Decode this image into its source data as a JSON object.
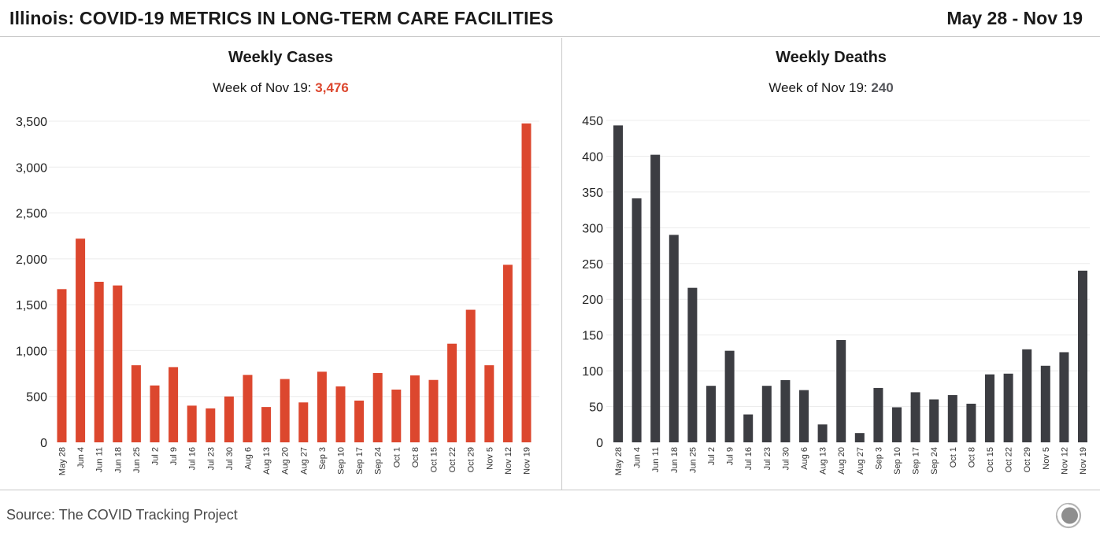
{
  "header": {
    "title": "Illinois: COVID-19 METRICS IN LONG-TERM CARE FACILITIES",
    "date_range": "May 28 - Nov 19"
  },
  "footer": {
    "source": "Source: The COVID Tracking Project",
    "logo_icon": "covid-tracking-project-logo-icon"
  },
  "colors": {
    "cases": "#dc472e",
    "deaths": "#3c3d42",
    "grid": "#ececec",
    "text": "#1a1a1a"
  },
  "chart_data": [
    {
      "type": "bar",
      "title": "Weekly Cases",
      "subtitle_prefix": "Week of Nov 19: ",
      "subtitle_value": "3,476",
      "categories": [
        "May 28",
        "Jun 4",
        "Jun 11",
        "Jun 18",
        "Jun 25",
        "Jul 2",
        "Jul 9",
        "Jul 16",
        "Jul 23",
        "Jul 30",
        "Aug 6",
        "Aug 13",
        "Aug 20",
        "Aug 27",
        "Sep 3",
        "Sep 10",
        "Sep 17",
        "Sep 24",
        "Oct 1",
        "Oct 8",
        "Oct 15",
        "Oct 22",
        "Oct 29",
        "Nov 5",
        "Nov 12",
        "Nov 19"
      ],
      "values": [
        1670,
        2220,
        1750,
        1710,
        840,
        620,
        820,
        400,
        370,
        500,
        735,
        385,
        690,
        435,
        770,
        610,
        455,
        755,
        575,
        730,
        680,
        1075,
        1445,
        840,
        1935,
        3476
      ],
      "yticks": [
        0,
        500,
        1000,
        1500,
        2000,
        2500,
        3000,
        3500
      ],
      "ytick_labels": [
        "0",
        "500",
        "1,000",
        "1,500",
        "2,000",
        "2,500",
        "3,000",
        "3,500"
      ],
      "ylim": [
        0,
        3500
      ],
      "xlabel": "",
      "ylabel": "",
      "grid": true,
      "color": "#dc472e"
    },
    {
      "type": "bar",
      "title": "Weekly Deaths",
      "subtitle_prefix": "Week of Nov 19: ",
      "subtitle_value": "240",
      "categories": [
        "May 28",
        "Jun 4",
        "Jun 11",
        "Jun 18",
        "Jun 25",
        "Jul 2",
        "Jul 9",
        "Jul 16",
        "Jul 23",
        "Jul 30",
        "Aug 6",
        "Aug 13",
        "Aug 20",
        "Aug 27",
        "Sep 3",
        "Sep 10",
        "Sep 17",
        "Sep 24",
        "Oct 1",
        "Oct 8",
        "Oct 15",
        "Oct 22",
        "Oct 29",
        "Nov 5",
        "Nov 12",
        "Nov 19"
      ],
      "values": [
        443,
        341,
        402,
        290,
        216,
        79,
        128,
        39,
        79,
        87,
        73,
        25,
        143,
        13,
        76,
        49,
        70,
        60,
        66,
        54,
        95,
        96,
        130,
        107,
        126,
        240
      ],
      "yticks": [
        0,
        50,
        100,
        150,
        200,
        250,
        300,
        350,
        400,
        450
      ],
      "ytick_labels": [
        "0",
        "50",
        "100",
        "150",
        "200",
        "250",
        "300",
        "350",
        "400",
        "450"
      ],
      "ylim": [
        0,
        450
      ],
      "xlabel": "",
      "ylabel": "",
      "grid": true,
      "color": "#3c3d42"
    }
  ]
}
